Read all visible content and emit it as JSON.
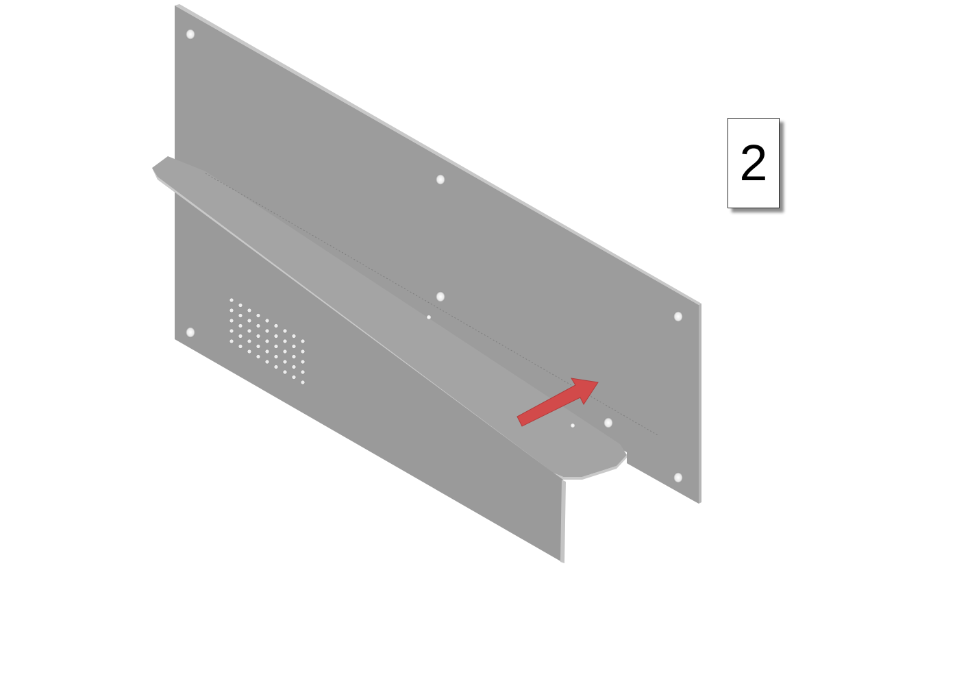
{
  "step_label": {
    "number": "2"
  },
  "colors": {
    "background": "#ffffff",
    "metal_face": "#9b9b9b",
    "metal_edge": "#bcbcbc",
    "metal_dark": "#7c7c7c",
    "hole": "#f4f4f4",
    "arrow": "#d24a4a"
  },
  "icons": {
    "arrow": "arrow-right-icon"
  }
}
